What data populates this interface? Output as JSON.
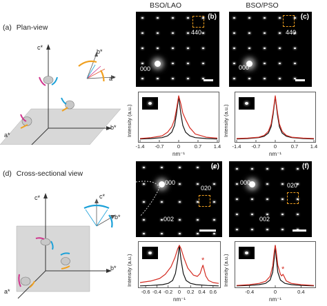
{
  "panel_a": {
    "label": "(a)",
    "title": "Plan-view",
    "axes": {
      "c": "c*",
      "b": "b*",
      "a": "a*"
    },
    "recip": {
      "b": "b*",
      "a": "a*"
    }
  },
  "panel_d": {
    "label": "(d)",
    "title": "Cross-sectional view",
    "axes": {
      "c": "c*",
      "b": "b*",
      "a": "a*"
    },
    "recip": {
      "c": "c*",
      "b": "b*"
    }
  },
  "columns": {
    "left": "BSO/LAO",
    "right": "BSO/PSO"
  },
  "patterns": {
    "b": {
      "letter": "(b)",
      "labels": [
        "000",
        "440"
      ]
    },
    "c": {
      "letter": "(c)",
      "labels": [
        "000",
        "440"
      ]
    },
    "e": {
      "letter": "(e)",
      "labels": [
        "000",
        "020",
        "002"
      ]
    },
    "f": {
      "letter": "(f)",
      "labels": [
        "000",
        "020",
        "002"
      ]
    }
  },
  "profile_common": {
    "ylabel": "Intensity (a.u.)",
    "xunit": "nm⁻¹"
  },
  "colors": {
    "black_profile": "#111111",
    "red_profile": "#d42a20",
    "select_box": "#f0a020"
  },
  "chart_data": [
    {
      "type": "line",
      "panel": "b",
      "xlim": [
        -1.4,
        1.4
      ],
      "xticks": [
        "-1.4",
        "-0.7",
        "0",
        "0.7",
        "1.4"
      ],
      "ylabel": "Intensity (a.u.)",
      "xlabel": "nm⁻¹",
      "series": [
        {
          "x": [
            -1.4,
            -1.0,
            -0.6,
            -0.4,
            -0.25,
            -0.15,
            -0.08,
            0,
            0.08,
            0.15,
            0.25,
            0.4,
            0.6,
            1.0,
            1.4
          ],
          "y": [
            0.05,
            0.06,
            0.08,
            0.12,
            0.2,
            0.35,
            0.6,
            0.98,
            0.6,
            0.35,
            0.2,
            0.12,
            0.08,
            0.06,
            0.05
          ]
        },
        {
          "x": [
            -1.4,
            -1.0,
            -0.6,
            -0.4,
            -0.25,
            -0.15,
            -0.08,
            0,
            0.08,
            0.15,
            0.25,
            0.4,
            0.6,
            1.0,
            1.4
          ],
          "y": [
            0.06,
            0.08,
            0.12,
            0.2,
            0.32,
            0.48,
            0.7,
            1.0,
            0.82,
            0.62,
            0.48,
            0.3,
            0.16,
            0.09,
            0.07
          ]
        }
      ]
    },
    {
      "type": "line",
      "panel": "c",
      "xlim": [
        -1.4,
        1.4
      ],
      "xticks": [
        "-1.4",
        "-0.7",
        "0",
        "0.7",
        "1.4"
      ],
      "ylabel": "Intensity (a.u.)",
      "xlabel": "nm⁻¹",
      "series": [
        {
          "x": [
            -1.4,
            -1.0,
            -0.6,
            -0.4,
            -0.25,
            -0.15,
            -0.08,
            0,
            0.08,
            0.15,
            0.25,
            0.4,
            0.6,
            1.0,
            1.4
          ],
          "y": [
            0.05,
            0.06,
            0.08,
            0.11,
            0.18,
            0.32,
            0.58,
            0.98,
            0.58,
            0.32,
            0.18,
            0.11,
            0.08,
            0.06,
            0.05
          ]
        },
        {
          "x": [
            -1.4,
            -1.0,
            -0.6,
            -0.4,
            -0.25,
            -0.15,
            -0.08,
            0,
            0.08,
            0.15,
            0.25,
            0.4,
            0.6,
            1.0,
            1.4
          ],
          "y": [
            0.06,
            0.07,
            0.09,
            0.13,
            0.22,
            0.38,
            0.64,
            1.0,
            0.64,
            0.38,
            0.22,
            0.13,
            0.09,
            0.07,
            0.06
          ]
        }
      ]
    },
    {
      "type": "line",
      "panel": "e",
      "xlim": [
        -0.7,
        0.7
      ],
      "xticks": [
        "-0.6",
        "-0.4",
        "-0.2",
        "0",
        "0.2",
        "0.4",
        "0.6"
      ],
      "ylabel": "Intensity (a.u.)",
      "xlabel": "nm⁻¹",
      "annotation": "*",
      "series": [
        {
          "x": [
            -0.7,
            -0.5,
            -0.3,
            -0.2,
            -0.12,
            -0.07,
            -0.03,
            0,
            0.03,
            0.07,
            0.12,
            0.2,
            0.3,
            0.5,
            0.7
          ],
          "y": [
            0.02,
            0.03,
            0.05,
            0.08,
            0.15,
            0.32,
            0.65,
            1.0,
            0.65,
            0.32,
            0.15,
            0.08,
            0.05,
            0.03,
            0.02
          ]
        },
        {
          "x": [
            -0.7,
            -0.5,
            -0.35,
            -0.25,
            -0.15,
            -0.08,
            -0.03,
            0,
            0.03,
            0.08,
            0.15,
            0.25,
            0.32,
            0.37,
            0.4,
            0.42,
            0.44,
            0.47,
            0.52,
            0.6,
            0.7
          ],
          "y": [
            0.1,
            0.14,
            0.2,
            0.3,
            0.48,
            0.7,
            0.92,
            1.0,
            0.92,
            0.7,
            0.45,
            0.28,
            0.25,
            0.32,
            0.45,
            0.52,
            0.42,
            0.26,
            0.15,
            0.1,
            0.08
          ]
        }
      ]
    },
    {
      "type": "line",
      "panel": "f",
      "xlim": [
        -0.6,
        0.6
      ],
      "xticks": [
        "-0.4",
        "0",
        "0.4"
      ],
      "ylabel": "Intensity (a.u.)",
      "xlabel": "nm⁻¹",
      "annotation": "*",
      "series": [
        {
          "x": [
            -0.6,
            -0.4,
            -0.25,
            -0.15,
            -0.08,
            -0.04,
            -0.015,
            0,
            0.015,
            0.04,
            0.08,
            0.15,
            0.25,
            0.4,
            0.6
          ],
          "y": [
            0.02,
            0.03,
            0.05,
            0.08,
            0.16,
            0.35,
            0.7,
            1.0,
            0.7,
            0.35,
            0.16,
            0.08,
            0.05,
            0.03,
            0.02
          ]
        },
        {
          "x": [
            -0.6,
            -0.4,
            -0.25,
            -0.15,
            -0.08,
            -0.04,
            -0.015,
            0,
            0.015,
            0.04,
            0.08,
            0.1,
            0.12,
            0.14,
            0.17,
            0.25,
            0.4,
            0.6
          ],
          "y": [
            0.03,
            0.05,
            0.08,
            0.13,
            0.25,
            0.5,
            0.85,
            1.0,
            0.85,
            0.52,
            0.3,
            0.26,
            0.3,
            0.24,
            0.14,
            0.08,
            0.05,
            0.03
          ]
        }
      ]
    }
  ]
}
